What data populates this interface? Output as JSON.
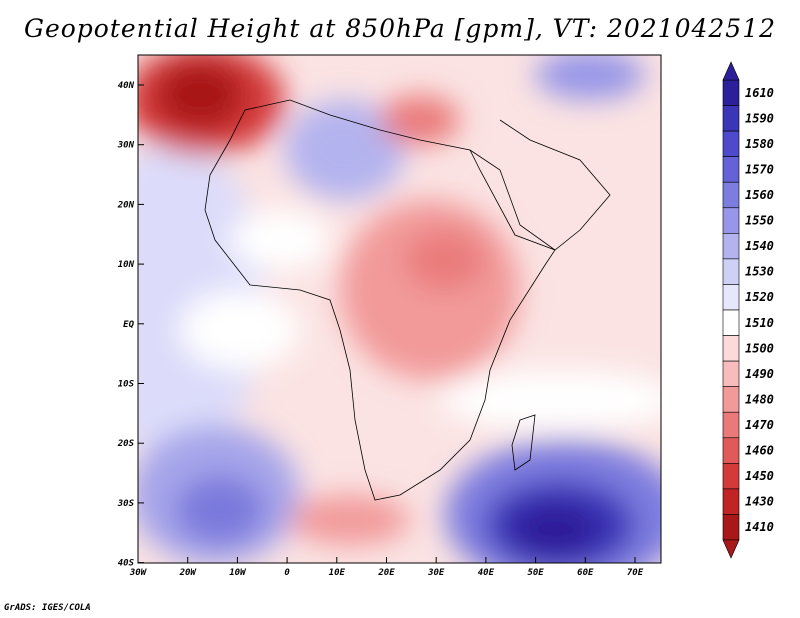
{
  "title": "Geopotential Height at 850hPa [gpm], VT: 2021042512",
  "footer": "GrADS: IGES/COLA",
  "map": {
    "lat_ticks": [
      "40N",
      "30N",
      "20N",
      "10N",
      "EQ",
      "10S",
      "20S",
      "30S",
      "40S"
    ],
    "lon_ticks": [
      "30W",
      "20W",
      "10W",
      "0",
      "10E",
      "20E",
      "30E",
      "40E",
      "50E",
      "60E",
      "70E"
    ]
  },
  "colorbar": {
    "levels": [
      "1610",
      "1590",
      "1580",
      "1570",
      "1560",
      "1550",
      "1540",
      "1530",
      "1520",
      "1510",
      "1500",
      "1490",
      "1480",
      "1470",
      "1460",
      "1450",
      "1430",
      "1410"
    ],
    "colors": [
      "#2d1f9a",
      "#3b35b8",
      "#4d4acb",
      "#6462d6",
      "#7d7ddf",
      "#9796e8",
      "#b3b3ef",
      "#cfd0f6",
      "#e6e7fb",
      "#ffffff",
      "#fcdada",
      "#f8bcbc",
      "#f29a9a",
      "#ea7a7a",
      "#e05a5a",
      "#d53a3a",
      "#c02424",
      "#a81818"
    ]
  }
}
